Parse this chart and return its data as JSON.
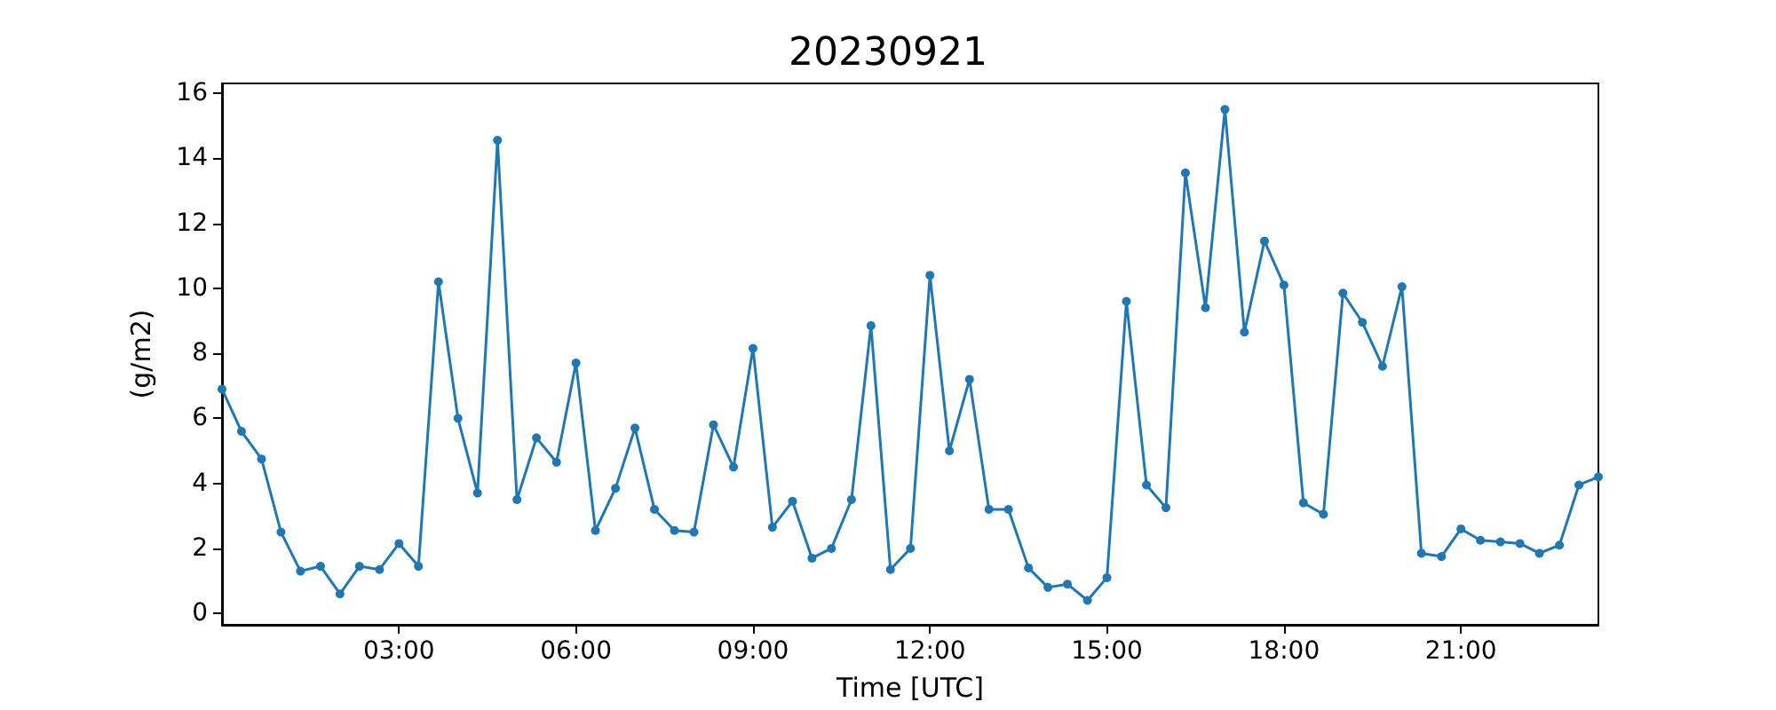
{
  "chart_data": {
    "type": "line",
    "title": "20230921",
    "xlabel": "Time [UTC]",
    "ylabel": "(g/m2)",
    "x": [
      0,
      0.33,
      0.67,
      1,
      1.33,
      1.67,
      2,
      2.33,
      2.67,
      3,
      3.33,
      3.67,
      4,
      4.33,
      4.67,
      5,
      5.33,
      5.67,
      6,
      6.33,
      6.67,
      7,
      7.33,
      7.67,
      8,
      8.33,
      8.67,
      9,
      9.33,
      9.67,
      10,
      10.33,
      10.67,
      11,
      11.33,
      11.67,
      12,
      12.33,
      12.67,
      13,
      13.33,
      13.67,
      14,
      14.33,
      14.67,
      15,
      15.33,
      15.67,
      16,
      16.33,
      16.67,
      17,
      17.33,
      17.67,
      18,
      18.33,
      18.67,
      19,
      19.33,
      19.67,
      20,
      20.33,
      20.67,
      21,
      21.33,
      21.67,
      22,
      22.33,
      22.67,
      23,
      23.33
    ],
    "series": [
      {
        "color": "#1f77b4",
        "values": [
          6.9,
          5.6,
          4.75,
          2.5,
          1.3,
          1.45,
          0.6,
          1.45,
          1.35,
          2.15,
          1.45,
          10.2,
          6.0,
          3.7,
          14.55,
          3.5,
          5.4,
          4.65,
          7.7,
          2.55,
          3.85,
          5.7,
          3.2,
          2.55,
          2.5,
          5.8,
          4.5,
          8.15,
          2.65,
          3.45,
          1.7,
          2.0,
          3.5,
          8.85,
          1.35,
          2.0,
          10.4,
          5.0,
          7.2,
          3.2,
          3.2,
          1.4,
          0.8,
          0.9,
          0.4,
          1.1,
          9.6,
          3.95,
          3.25,
          13.55,
          9.4,
          15.5,
          8.65,
          11.45,
          10.1,
          3.4,
          3.05,
          9.85,
          8.95,
          7.6,
          10.05,
          1.85,
          1.75,
          2.6,
          2.25,
          2.2,
          2.15,
          1.85,
          2.1,
          3.95,
          4.2
        ]
      }
    ],
    "xlim": [
      0,
      23.33
    ],
    "xticks": [
      {
        "value": 3,
        "label": "03:00"
      },
      {
        "value": 6,
        "label": "06:00"
      },
      {
        "value": 9,
        "label": "09:00"
      },
      {
        "value": 12,
        "label": "12:00"
      },
      {
        "value": 15,
        "label": "15:00"
      },
      {
        "value": 18,
        "label": "18:00"
      },
      {
        "value": 21,
        "label": "21:00"
      }
    ],
    "ylim": [
      -0.35,
      16.3
    ],
    "yticks": [
      0,
      2,
      4,
      6,
      8,
      10,
      12,
      14,
      16
    ],
    "marker": "circle",
    "line_style": "solid"
  }
}
